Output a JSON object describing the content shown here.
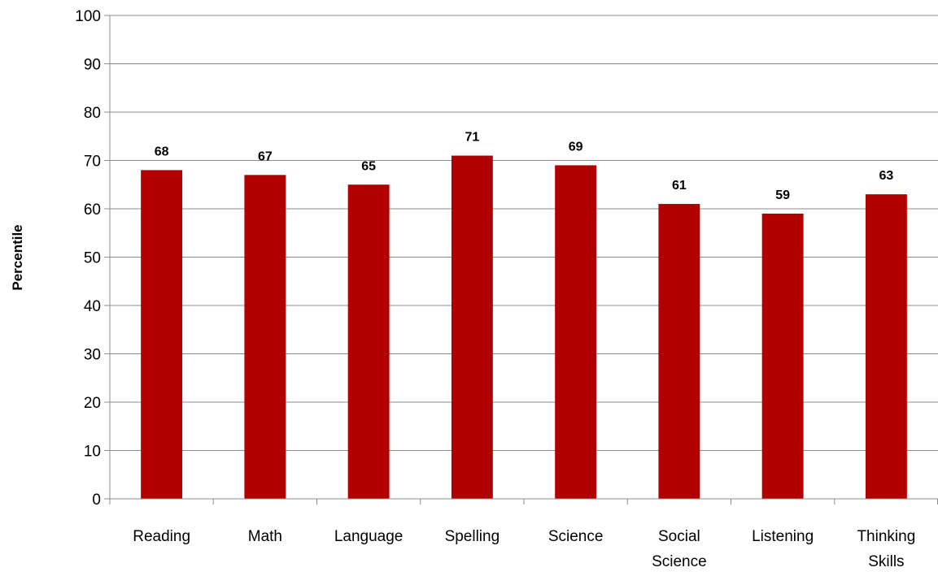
{
  "chart_data": {
    "type": "bar",
    "categories": [
      [
        "Reading"
      ],
      [
        "Math"
      ],
      [
        "Language"
      ],
      [
        "Spelling"
      ],
      [
        "Science"
      ],
      [
        "Social",
        "Science"
      ],
      [
        "Listening"
      ],
      [
        "Thinking",
        "Skills"
      ]
    ],
    "values": [
      68,
      67,
      65,
      71,
      69,
      61,
      59,
      63
    ],
    "ylabel": "Percentile",
    "xlabel": "",
    "title": "",
    "ylim": [
      0,
      100
    ],
    "y_ticks": [
      "0",
      "10",
      "20",
      "30",
      "40",
      "50",
      "60",
      "70",
      "80",
      "90",
      "100"
    ],
    "grid": true,
    "data_labels": [
      "68",
      "67",
      "65",
      "71",
      "69",
      "61",
      "59",
      "63"
    ],
    "colors": {
      "bar": "#B00000",
      "grid": "#8c8c8c",
      "axis": "#8c8c8c"
    }
  }
}
